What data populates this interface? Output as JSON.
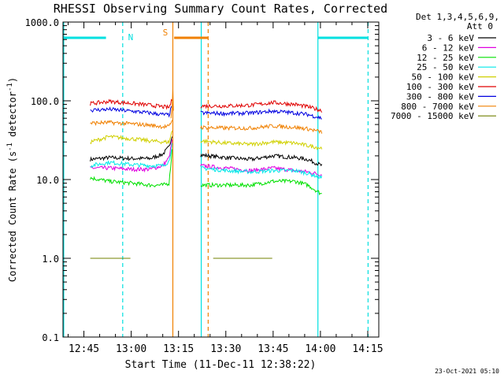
{
  "chart_data": {
    "type": "line",
    "title": "RHESSI Observing Summary Count Rates, Corrected",
    "xlabel": "Start Time (11-Dec-11 12:38:22)",
    "ylabel": "Corrected Count Rate (s⁻¹ detector⁻¹)",
    "yscale": "log",
    "ylim": [
      0.1,
      1000
    ],
    "xlim_minutes": [
      38.37,
      138.5
    ],
    "y_ticks": [
      {
        "v": 0.1,
        "label": "0.1"
      },
      {
        "v": 1,
        "label": "1.0"
      },
      {
        "v": 10,
        "label": "10.0"
      },
      {
        "v": 100,
        "label": "100.0"
      },
      {
        "v": 1000,
        "label": "1000.0"
      }
    ],
    "x_ticks": [
      {
        "m": 45,
        "label": "12:45"
      },
      {
        "m": 60,
        "label": "13:00"
      },
      {
        "m": 75,
        "label": "13:15"
      },
      {
        "m": 90,
        "label": "13:30"
      },
      {
        "m": 105,
        "label": "13:45"
      },
      {
        "m": 120,
        "label": "14:00"
      },
      {
        "m": 135,
        "label": "14:15"
      }
    ],
    "legend_header": [
      "Det 1,3,4,5,6,9,",
      "Att 0"
    ],
    "legend_position": "right",
    "series": [
      {
        "name": "3 - 6 keV",
        "color": "#000000",
        "segments": [
          {
            "x": [
              47,
              53,
              60,
              66,
              70,
              72,
              73.2
            ],
            "y": [
              18,
              19,
              18.5,
              18.5,
              21,
              26,
              40
            ]
          },
          {
            "x": [
              82,
              90,
              98,
              105,
              112,
              116,
              120.5
            ],
            "y": [
              20.5,
              19,
              18,
              20,
              19,
              18,
              15
            ]
          }
        ]
      },
      {
        "name": "6 - 12 keV",
        "color": "#e000e0",
        "segments": [
          {
            "x": [
              47,
              53,
              60,
              66,
              70,
              72,
              73.2
            ],
            "y": [
              14,
              14,
              13.5,
              13.5,
              15,
              19,
              35
            ]
          },
          {
            "x": [
              82,
              90,
              98,
              105,
              112,
              116,
              120.5
            ],
            "y": [
              15,
              14,
              13,
              14,
              13,
              12.5,
              11.5
            ]
          }
        ]
      },
      {
        "name": "12 - 25 keV",
        "color": "#00e000",
        "segments": [
          {
            "x": [
              47,
              53,
              60,
              66,
              70,
              72,
              73.2
            ],
            "y": [
              10.5,
              9.5,
              9,
              8.5,
              8.5,
              9,
              30
            ]
          },
          {
            "x": [
              82,
              90,
              98,
              105,
              112,
              116,
              120.5
            ],
            "y": [
              8.5,
              8.5,
              8.5,
              9.5,
              9.5,
              8.5,
              6.5
            ]
          }
        ]
      },
      {
        "name": "25 - 50 keV",
        "color": "#00e8e8",
        "segments": [
          {
            "x": [
              47,
              53,
              60,
              66,
              70,
              72,
              73.2
            ],
            "y": [
              15,
              16.5,
              15.5,
              15,
              15,
              17,
              32
            ]
          },
          {
            "x": [
              82,
              90,
              98,
              105,
              112,
              116,
              120.5
            ],
            "y": [
              14,
              13,
              12.5,
              13,
              13,
              12,
              10.5
            ]
          }
        ]
      },
      {
        "name": "50 - 100 keV",
        "color": "#d0d000",
        "segments": [
          {
            "x": [
              47,
              53,
              60,
              66,
              70,
              72,
              73.2
            ],
            "y": [
              30,
              35,
              33,
              31,
              30,
              30,
              45
            ]
          },
          {
            "x": [
              82,
              90,
              98,
              105,
              112,
              116,
              120.5
            ],
            "y": [
              31,
              29,
              28,
              30,
              29,
              27,
              25
            ]
          }
        ]
      },
      {
        "name": "100 - 300 keV",
        "color": "#e00000",
        "segments": [
          {
            "x": [
              47,
              53,
              60,
              66,
              70,
              72,
              73.2
            ],
            "y": [
              92,
              98,
              93,
              88,
              84,
              82,
              110
            ]
          },
          {
            "x": [
              82,
              90,
              98,
              105,
              112,
              116,
              120.5
            ],
            "y": [
              86,
              86,
              88,
              95,
              90,
              84,
              75
            ]
          }
        ]
      },
      {
        "name": "300 - 800 keV",
        "color": "#0000e0",
        "segments": [
          {
            "x": [
              47,
              53,
              60,
              66,
              70,
              72,
              73.2
            ],
            "y": [
              76,
              78,
              74,
              70,
              67,
              66,
              95
            ]
          },
          {
            "x": [
              82,
              90,
              98,
              105,
              112,
              116,
              120.5
            ],
            "y": [
              70,
              69,
              70,
              74,
              70,
              67,
              60
            ]
          }
        ]
      },
      {
        "name": "800 - 7000 keV",
        "color": "#f08000",
        "segments": [
          {
            "x": [
              47,
              53,
              60,
              66,
              70,
              72,
              73.2
            ],
            "y": [
              52,
              53,
              51,
              49,
              47,
              47,
              60
            ]
          },
          {
            "x": [
              82,
              90,
              98,
              105,
              112,
              116,
              120.5
            ],
            "y": [
              46,
              45,
              45,
              48,
              46,
              44,
              40
            ]
          }
        ]
      },
      {
        "name": "7000 - 15000 keV",
        "color": "#708000",
        "segments": [
          {
            "x": [
              47,
              50,
              55,
              60
            ],
            "y": [
              1.0,
              1.0,
              1.0,
              1.0
            ]
          },
          {
            "x": [
              86,
              90,
              95,
              100,
              105
            ],
            "y": [
              1.0,
              1.0,
              1.0,
              1.0,
              1.0
            ]
          }
        ]
      }
    ],
    "annotations": [
      {
        "label": "N",
        "color": "#00e0e0"
      },
      {
        "label": "S",
        "color": "#f08000"
      }
    ],
    "footer_stamp": "23-Oct-2021 05:10"
  }
}
